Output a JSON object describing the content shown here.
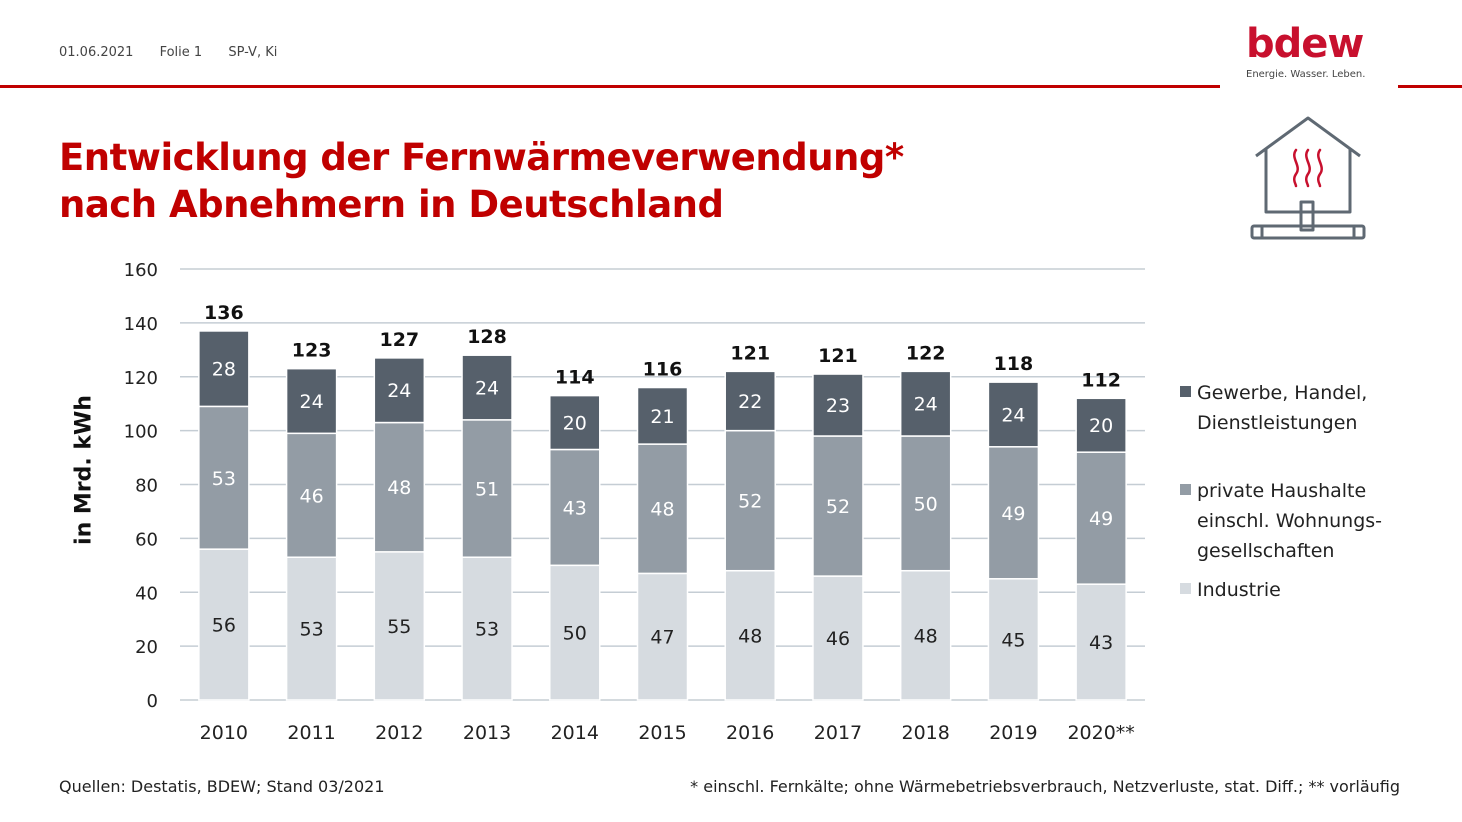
{
  "header": {
    "date": "01.06.2021",
    "slide": "Folie 1",
    "department": "SP-V, Ki"
  },
  "logo": {
    "wordmark": "bdew",
    "tagline": "Energie. Wasser. Leben."
  },
  "title": {
    "line1": "Entwicklung der Fernwärmeverwendung*",
    "line2": "nach Abnehmern in Deutschland"
  },
  "icons": {
    "house": "house-heating-icon"
  },
  "colors": {
    "brand_red": "#c00000",
    "industrie": "#d6dbe0",
    "haushalte": "#939ca5",
    "gewerbe": "#56606b",
    "grid": "#c5cdd4"
  },
  "chart_data": {
    "type": "bar",
    "stacked": true,
    "categories": [
      "2010",
      "2011",
      "2012",
      "2013",
      "2014",
      "2015",
      "2016",
      "2017",
      "2018",
      "2019",
      "2020**"
    ],
    "series": [
      {
        "name": "Industrie",
        "values": [
          56,
          53,
          55,
          53,
          50,
          47,
          48,
          46,
          48,
          45,
          43
        ]
      },
      {
        "name": "private Haushalte\neinschl. Wohnungs-\ngesellschaften",
        "values": [
          53,
          46,
          48,
          51,
          43,
          48,
          52,
          52,
          50,
          49,
          49
        ]
      },
      {
        "name": "Gewerbe, Handel,\nDienstleistungen",
        "values": [
          28,
          24,
          24,
          24,
          20,
          21,
          22,
          23,
          24,
          24,
          20
        ]
      }
    ],
    "totals": [
      136,
      123,
      127,
      128,
      114,
      116,
      121,
      121,
      122,
      118,
      112
    ],
    "ylabel": "in Mrd. kWh",
    "xlabel": "",
    "ylim": [
      0,
      160
    ],
    "yticks": [
      0,
      20,
      40,
      60,
      80,
      100,
      120,
      140,
      160
    ],
    "grid": true,
    "legend_position": "right"
  },
  "footer": {
    "source": "Quellen: Destatis, BDEW; Stand 03/2021",
    "note": "* einschl. Fernkälte; ohne Wärmebetriebsverbrauch, Netzverluste, stat. Diff.; ** vorläufig"
  }
}
